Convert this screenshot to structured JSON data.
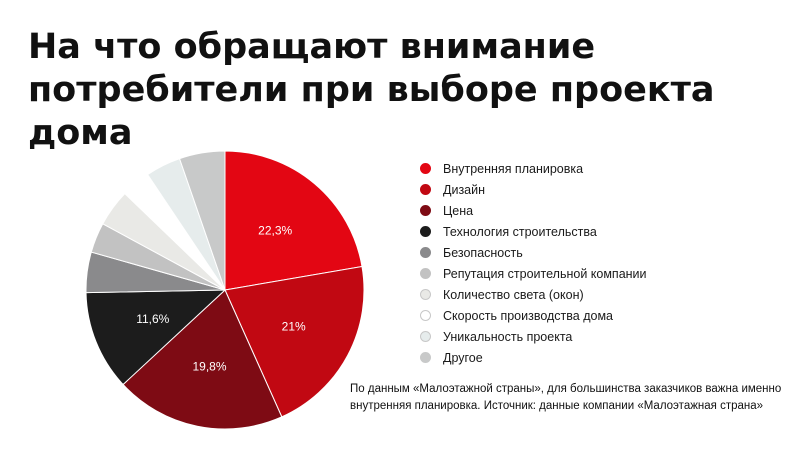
{
  "title_lines": [
    "На что обращают внимание",
    "потребители при выборе проекта",
    "дома"
  ],
  "note": "По данным «Малоэтажной страны», для большинства заказчиков важна именно внутренняя планировка. Источник: данные компании «Малоэтажная страна»",
  "chart_data": {
    "type": "pie",
    "slices": [
      {
        "label": "Внутренняя планировка",
        "value": 22.3,
        "value_label": "22,3%",
        "color": "#e30613"
      },
      {
        "label": "Дизайн",
        "value": 21.0,
        "value_label": "21%",
        "color": "#c10812"
      },
      {
        "label": "Цена",
        "value": 19.8,
        "value_label": "19,8%",
        "color": "#7e0b14"
      },
      {
        "label": "Технология строительства",
        "value": 11.6,
        "value_label": "11,6%",
        "color": "#1c1c1c"
      },
      {
        "label": "Безопасность",
        "value": 4.7,
        "value_label": "",
        "color": "#8a8a8c"
      },
      {
        "label": "Репутация строительной компании",
        "value": 3.5,
        "value_label": "",
        "color": "#c2c2c2"
      },
      {
        "label": "Количество света (окон)",
        "value": 4.3,
        "value_label": "",
        "color": "#e9e9e6"
      },
      {
        "label": "Скорость производства дома",
        "value": 3.4,
        "value_label": "",
        "color": "#ffffff"
      },
      {
        "label": "Уникальность проекта",
        "value": 4.1,
        "value_label": "",
        "color": "#e6ecec"
      },
      {
        "label": "Другое",
        "value": 5.3,
        "value_label": "",
        "color": "#c8c9c9"
      }
    ],
    "legend_position": "right",
    "start_angle_deg": 0,
    "direction": "clockwise"
  }
}
